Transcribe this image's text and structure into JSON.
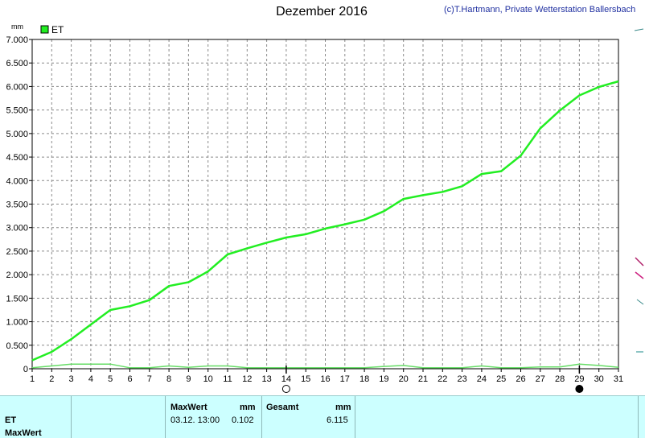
{
  "header": {
    "title": "Dezember 2016",
    "credit": "(c)T.Hartmann, Private Wetterstation Ballersbach"
  },
  "chart_data": {
    "type": "line",
    "title": "Dezember 2016",
    "ylabel": "mm",
    "xlabel": "",
    "x": [
      1,
      2,
      3,
      4,
      5,
      6,
      7,
      8,
      9,
      10,
      11,
      12,
      13,
      14,
      15,
      16,
      17,
      18,
      19,
      20,
      21,
      22,
      23,
      24,
      25,
      26,
      27,
      28,
      29,
      30,
      31
    ],
    "xlim": [
      1,
      31
    ],
    "ylim": [
      0,
      7
    ],
    "y_ticks": [
      "0",
      "0.500",
      "1.000",
      "1.500",
      "2.000",
      "2.500",
      "3.000",
      "3.500",
      "4.000",
      "4.500",
      "5.000",
      "5.500",
      "6.000",
      "6.500",
      "7.000"
    ],
    "grid": true,
    "legend_position": "top-left",
    "series": [
      {
        "name": "ET",
        "color": "#22ee22",
        "values": [
          0.18,
          0.36,
          0.63,
          0.94,
          1.25,
          1.33,
          1.46,
          1.76,
          1.84,
          2.07,
          2.43,
          2.56,
          2.68,
          2.79,
          2.86,
          2.98,
          3.07,
          3.17,
          3.35,
          3.61,
          3.69,
          3.76,
          3.88,
          4.14,
          4.2,
          4.53,
          5.11,
          5.49,
          5.81,
          5.99,
          6.11
        ]
      },
      {
        "color": "#66dd66",
        "values": [
          0.02,
          0.06,
          0.1,
          0.1,
          0.1,
          0.02,
          0.02,
          0.06,
          0.03,
          0.06,
          0.06,
          0.02,
          0.02,
          0.02,
          0.02,
          0.02,
          0.02,
          0.02,
          0.05,
          0.07,
          0.02,
          0.02,
          0.02,
          0.06,
          0.02,
          0.02,
          0.04,
          0.04,
          0.1,
          0.07,
          0.03
        ]
      }
    ],
    "moon_markers": [
      {
        "day": 14,
        "phase": "full-moon"
      },
      {
        "day": 29,
        "phase": "new-moon"
      }
    ]
  },
  "stats_panel": {
    "row_label_1": "ET",
    "row_label_2": "MaxWert",
    "maxwert_header": "MaxWert",
    "maxwert_unit": "mm",
    "maxwert_time": "03.12.  13:00",
    "maxwert_value": "0.102",
    "gesamt_header": "Gesamt",
    "gesamt_unit": "mm",
    "gesamt_value": "6.115"
  }
}
